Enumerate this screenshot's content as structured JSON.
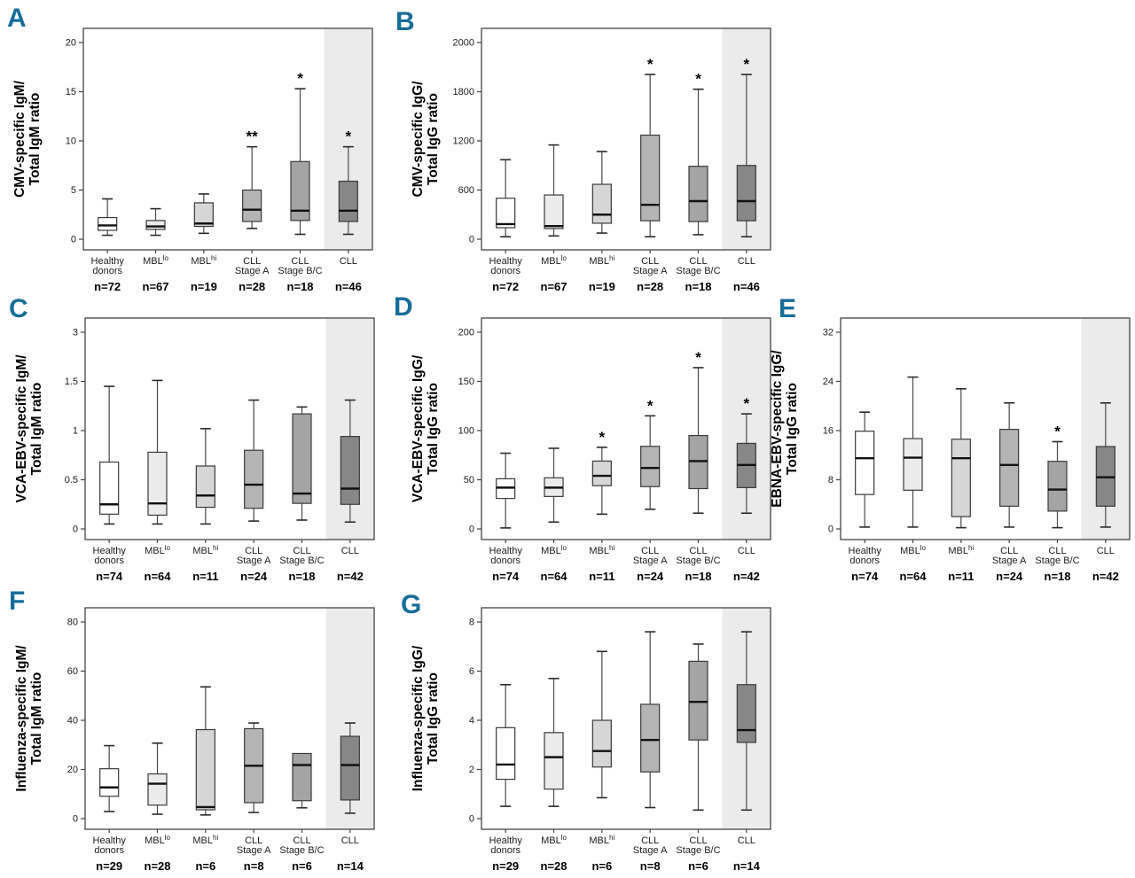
{
  "figure": {
    "title": "",
    "panel_letter_color": "#176d99",
    "cll_band_color": "#ebebeb",
    "axis_color": "#444444",
    "median_color": "#111111",
    "box_border_color": "#3a3a3a",
    "box_fill_colors": [
      "#ffffff",
      "#ebebeb",
      "#d6d6d6",
      "#b4b4b4",
      "#a4a4a4",
      "#878787"
    ]
  },
  "chart_data": {
    "shared": {
      "type": "box",
      "legend": "none",
      "grid": "off",
      "categories": [
        {
          "line1": "Healthy",
          "line2": "donors"
        },
        {
          "line1": "MBL",
          "sup": "lo"
        },
        {
          "line1": "MBL",
          "sup": "hi"
        },
        {
          "line1": "CLL",
          "line2": "Stage A"
        },
        {
          "line1": "CLL",
          "line2": "Stage B/C"
        },
        {
          "line1": "CLL"
        }
      ],
      "shaded_last_group": true
    },
    "panels": [
      {
        "type": "box",
        "panel": "A",
        "ylabel": [
          "CMV-specific IgM/",
          "Total IgM ratio"
        ],
        "yticks": [
          0,
          5,
          10,
          15,
          20
        ],
        "n": [
          "n=72",
          "n=67",
          "n=19",
          "n=28",
          "n=18",
          "n=46"
        ],
        "boxes": [
          {
            "low": 0.4,
            "q1": 0.9,
            "med": 1.4,
            "q3": 2.2,
            "high": 4.1,
            "sig": ""
          },
          {
            "low": 0.4,
            "q1": 1.0,
            "med": 1.3,
            "q3": 1.9,
            "high": 3.1,
            "sig": ""
          },
          {
            "low": 0.6,
            "q1": 1.3,
            "med": 1.6,
            "q3": 3.7,
            "high": 4.6,
            "sig": ""
          },
          {
            "low": 1.1,
            "q1": 1.8,
            "med": 3.0,
            "q3": 5.0,
            "high": 9.4,
            "sig": "**"
          },
          {
            "low": 0.5,
            "q1": 1.9,
            "med": 2.9,
            "q3": 7.9,
            "high": 15.3,
            "sig": "*"
          },
          {
            "low": 0.5,
            "q1": 1.8,
            "med": 2.9,
            "q3": 5.9,
            "high": 9.4,
            "sig": "*"
          }
        ]
      },
      {
        "type": "box",
        "panel": "B",
        "ylabel": [
          "CMV-specific IgG/",
          "Total IgG ratio"
        ],
        "yticks": [
          0,
          600,
          1200,
          1800,
          2000
        ],
        "n": [
          "n=72",
          "n=67",
          "n=19",
          "n=28",
          "n=18",
          "n=46"
        ],
        "boxes": [
          {
            "low": 30,
            "q1": 140,
            "med": 185,
            "q3": 500,
            "high": 970,
            "sig": ""
          },
          {
            "low": 40,
            "q1": 130,
            "med": 160,
            "q3": 540,
            "high": 1150,
            "sig": ""
          },
          {
            "low": 75,
            "q1": 195,
            "med": 300,
            "q3": 670,
            "high": 1070,
            "sig": ""
          },
          {
            "low": 30,
            "q1": 225,
            "med": 420,
            "q3": 1270,
            "high": 1870,
            "sig": "*"
          },
          {
            "low": 55,
            "q1": 215,
            "med": 465,
            "q3": 890,
            "high": 1810,
            "sig": "*"
          },
          {
            "low": 30,
            "q1": 225,
            "med": 465,
            "q3": 900,
            "high": 1870,
            "sig": "*"
          }
        ]
      },
      {
        "type": "box",
        "panel": "C",
        "ylabel": [
          "VCA-EBV-specific IgM/",
          "Total IgM ratio"
        ],
        "yticks": [
          0,
          0.5,
          1,
          1.5,
          3
        ],
        "n": [
          "n=74",
          "n=64",
          "n=11",
          "n=24",
          "n=18",
          "n=42"
        ],
        "boxes": [
          {
            "low": 0.05,
            "q1": 0.15,
            "med": 0.25,
            "q3": 0.68,
            "high": 1.45,
            "sig": ""
          },
          {
            "low": 0.05,
            "q1": 0.14,
            "med": 0.26,
            "q3": 0.78,
            "high": 1.53,
            "sig": ""
          },
          {
            "low": 0.05,
            "q1": 0.22,
            "med": 0.34,
            "q3": 0.64,
            "high": 1.02,
            "sig": ""
          },
          {
            "low": 0.08,
            "q1": 0.21,
            "med": 0.45,
            "q3": 0.8,
            "high": 1.31,
            "sig": ""
          },
          {
            "low": 0.09,
            "q1": 0.26,
            "med": 0.36,
            "q3": 1.17,
            "high": 1.24,
            "sig": ""
          },
          {
            "low": 0.07,
            "q1": 0.25,
            "med": 0.41,
            "q3": 0.94,
            "high": 1.31,
            "sig": ""
          }
        ]
      },
      {
        "type": "box",
        "panel": "D",
        "ylabel": [
          "VCA-EBV-specific IgG/",
          "Total IgG ratio"
        ],
        "yticks": [
          0,
          50,
          100,
          150,
          200
        ],
        "n": [
          "n=74",
          "n=64",
          "n=11",
          "n=24",
          "n=18",
          "n=42"
        ],
        "boxes": [
          {
            "low": 1,
            "q1": 31,
            "med": 42,
            "q3": 51,
            "high": 77,
            "sig": ""
          },
          {
            "low": 7,
            "q1": 33,
            "med": 42,
            "q3": 52,
            "high": 82,
            "sig": ""
          },
          {
            "low": 15,
            "q1": 44,
            "med": 54,
            "q3": 69,
            "high": 83,
            "sig": "*"
          },
          {
            "low": 20,
            "q1": 43,
            "med": 62,
            "q3": 84,
            "high": 115,
            "sig": "*"
          },
          {
            "low": 16,
            "q1": 41,
            "med": 69,
            "q3": 95,
            "high": 164,
            "sig": "*"
          },
          {
            "low": 16,
            "q1": 42,
            "med": 65,
            "q3": 87,
            "high": 117,
            "sig": "*"
          }
        ]
      },
      {
        "type": "box",
        "panel": "E",
        "ylabel": [
          "EBNA-EBV-specific IgG/",
          "Total IgG ratio"
        ],
        "yticks": [
          0,
          8,
          16,
          24,
          32
        ],
        "n": [
          "n=74",
          "n=64",
          "n=11",
          "n=24",
          "n=18",
          "n=42"
        ],
        "boxes": [
          {
            "low": 0.3,
            "q1": 5.6,
            "med": 11.5,
            "q3": 15.9,
            "high": 19.0,
            "sig": ""
          },
          {
            "low": 0.3,
            "q1": 6.3,
            "med": 11.6,
            "q3": 14.7,
            "high": 24.7,
            "sig": ""
          },
          {
            "low": 0.2,
            "q1": 2.0,
            "med": 11.5,
            "q3": 14.6,
            "high": 22.8,
            "sig": ""
          },
          {
            "low": 0.3,
            "q1": 3.7,
            "med": 10.4,
            "q3": 16.2,
            "high": 20.5,
            "sig": ""
          },
          {
            "low": 0.2,
            "q1": 2.9,
            "med": 6.4,
            "q3": 11.0,
            "high": 14.2,
            "sig": "*"
          },
          {
            "low": 0.3,
            "q1": 3.7,
            "med": 8.4,
            "q3": 13.4,
            "high": 20.5,
            "sig": ""
          }
        ]
      },
      {
        "type": "box",
        "panel": "F",
        "ylabel": [
          "Influenza-specific IgM/",
          "Total IgM ratio"
        ],
        "yticks": [
          0,
          20,
          40,
          60,
          80
        ],
        "n": [
          "n=29",
          "n=28",
          "n=6",
          "n=8",
          "n=6",
          "n=14"
        ],
        "boxes": [
          {
            "low": 2.9,
            "q1": 9.1,
            "med": 12.7,
            "q3": 20.3,
            "high": 29.7,
            "sig": ""
          },
          {
            "low": 1.8,
            "q1": 5.5,
            "med": 14.2,
            "q3": 18.2,
            "high": 30.7,
            "sig": ""
          },
          {
            "low": 1.5,
            "q1": 3.6,
            "med": 4.7,
            "q3": 36.2,
            "high": 53.6,
            "sig": ""
          },
          {
            "low": 2.5,
            "q1": 6.5,
            "med": 21.5,
            "q3": 36.6,
            "high": 38.9,
            "sig": ""
          },
          {
            "low": 4.4,
            "q1": 7.3,
            "med": 21.8,
            "q3": 26.5,
            "high": 26.5,
            "sig": ""
          },
          {
            "low": 2.2,
            "q1": 7.6,
            "med": 21.8,
            "q3": 33.5,
            "high": 38.9,
            "sig": ""
          }
        ]
      },
      {
        "type": "box",
        "panel": "G",
        "ylabel": [
          "Influenza-specific IgG/",
          "Total IgG ratio"
        ],
        "yticks": [
          0,
          2,
          4,
          6,
          8
        ],
        "n": [
          "n=29",
          "n=28",
          "n=6",
          "n=8",
          "n=6",
          "n=14"
        ],
        "boxes": [
          {
            "low": 0.5,
            "q1": 1.6,
            "med": 2.2,
            "q3": 3.7,
            "high": 5.45,
            "sig": ""
          },
          {
            "low": 0.5,
            "q1": 1.2,
            "med": 2.5,
            "q3": 3.5,
            "high": 5.7,
            "sig": ""
          },
          {
            "low": 0.85,
            "q1": 2.1,
            "med": 2.75,
            "q3": 4.0,
            "high": 6.8,
            "sig": ""
          },
          {
            "low": 0.45,
            "q1": 1.9,
            "med": 3.2,
            "q3": 4.65,
            "high": 7.6,
            "sig": ""
          },
          {
            "low": 0.35,
            "q1": 3.2,
            "med": 4.75,
            "q3": 6.4,
            "high": 7.1,
            "sig": ""
          },
          {
            "low": 0.35,
            "q1": 3.1,
            "med": 3.6,
            "q3": 5.45,
            "high": 7.6,
            "sig": ""
          }
        ]
      }
    ]
  }
}
